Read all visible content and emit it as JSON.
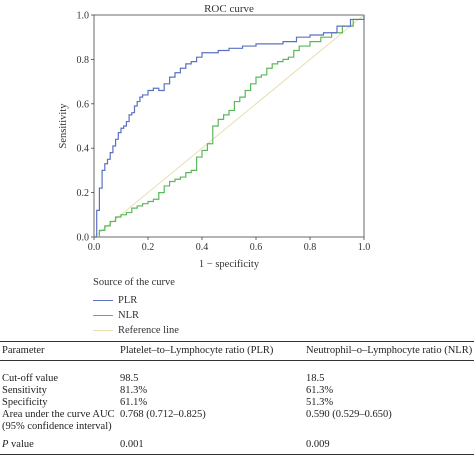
{
  "chart_data": {
    "type": "line",
    "title": "ROC curve",
    "xlabel": "1 − specificity",
    "ylabel": "Sensitivity",
    "xlim": [
      0,
      1
    ],
    "ylim": [
      0,
      1
    ],
    "x_ticks": [
      "0.0",
      "0.2",
      "0.4",
      "0.6",
      "0.8",
      "1.0"
    ],
    "y_ticks": [
      "0.0",
      "0.2",
      "0.4",
      "0.6",
      "0.8",
      "1.0"
    ],
    "grid": false,
    "legend_title": "Source of the curve",
    "legend_position": "below",
    "series": [
      {
        "name": "PLR",
        "color": "#5b72c0",
        "x": [
          0,
          0.01,
          0.02,
          0.03,
          0.04,
          0.05,
          0.06,
          0.07,
          0.08,
          0.09,
          0.1,
          0.11,
          0.12,
          0.13,
          0.14,
          0.15,
          0.16,
          0.17,
          0.18,
          0.2,
          0.22,
          0.24,
          0.26,
          0.28,
          0.3,
          0.32,
          0.34,
          0.36,
          0.38,
          0.4,
          0.42,
          0.46,
          0.5,
          0.55,
          0.6,
          0.65,
          0.7,
          0.75,
          0.8,
          0.85,
          0.9,
          0.95,
          1.0
        ],
        "y": [
          0,
          0.12,
          0.22,
          0.3,
          0.33,
          0.35,
          0.38,
          0.41,
          0.44,
          0.47,
          0.49,
          0.5,
          0.52,
          0.55,
          0.56,
          0.59,
          0.61,
          0.63,
          0.64,
          0.66,
          0.67,
          0.66,
          0.69,
          0.72,
          0.74,
          0.76,
          0.78,
          0.79,
          0.81,
          0.83,
          0.83,
          0.84,
          0.85,
          0.86,
          0.87,
          0.87,
          0.88,
          0.9,
          0.91,
          0.92,
          0.95,
          0.98,
          1.0
        ]
      },
      {
        "name": "NLR",
        "color": "#5cb85c",
        "x": [
          0,
          0.02,
          0.04,
          0.06,
          0.08,
          0.1,
          0.12,
          0.14,
          0.16,
          0.18,
          0.2,
          0.22,
          0.24,
          0.26,
          0.28,
          0.3,
          0.32,
          0.34,
          0.36,
          0.38,
          0.4,
          0.42,
          0.44,
          0.46,
          0.48,
          0.5,
          0.52,
          0.54,
          0.56,
          0.58,
          0.6,
          0.62,
          0.64,
          0.66,
          0.68,
          0.7,
          0.72,
          0.74,
          0.76,
          0.8,
          0.84,
          0.88,
          0.92,
          0.96,
          1.0
        ],
        "y": [
          0,
          0.03,
          0.05,
          0.07,
          0.09,
          0.1,
          0.11,
          0.13,
          0.14,
          0.15,
          0.16,
          0.17,
          0.2,
          0.23,
          0.25,
          0.26,
          0.27,
          0.29,
          0.3,
          0.36,
          0.39,
          0.42,
          0.5,
          0.53,
          0.55,
          0.57,
          0.61,
          0.63,
          0.66,
          0.69,
          0.72,
          0.73,
          0.76,
          0.78,
          0.79,
          0.8,
          0.81,
          0.84,
          0.86,
          0.88,
          0.9,
          0.92,
          0.95,
          0.98,
          1.0
        ]
      },
      {
        "name": "Reference line",
        "color": "#e6e0b0",
        "x": [
          0,
          1
        ],
        "y": [
          0,
          1
        ]
      }
    ]
  },
  "table": {
    "headers": [
      "Parameter",
      "Platelet–to–Lymphocyte ratio (PLR)",
      "Neutrophil–o–Lymphocyte ratio (NLR)"
    ],
    "rows": [
      {
        "label": "Cut-off value",
        "plr": "98.5",
        "nlr": "18.5"
      },
      {
        "label": "Sensitivity",
        "plr": "81.3%",
        "nlr": "61.3%"
      },
      {
        "label": "Specificity",
        "plr": "61.1%",
        "nlr": "51.3%"
      },
      {
        "label": "Area under the curve AUC (95% confidence interval)",
        "plr": "0.768 (0.712–0.825)",
        "nlr": "0.590 (0.529–0.650)"
      },
      {
        "label_italic": "P",
        "label_rest": " value",
        "plr": "0.001",
        "nlr": "0.009"
      }
    ]
  }
}
